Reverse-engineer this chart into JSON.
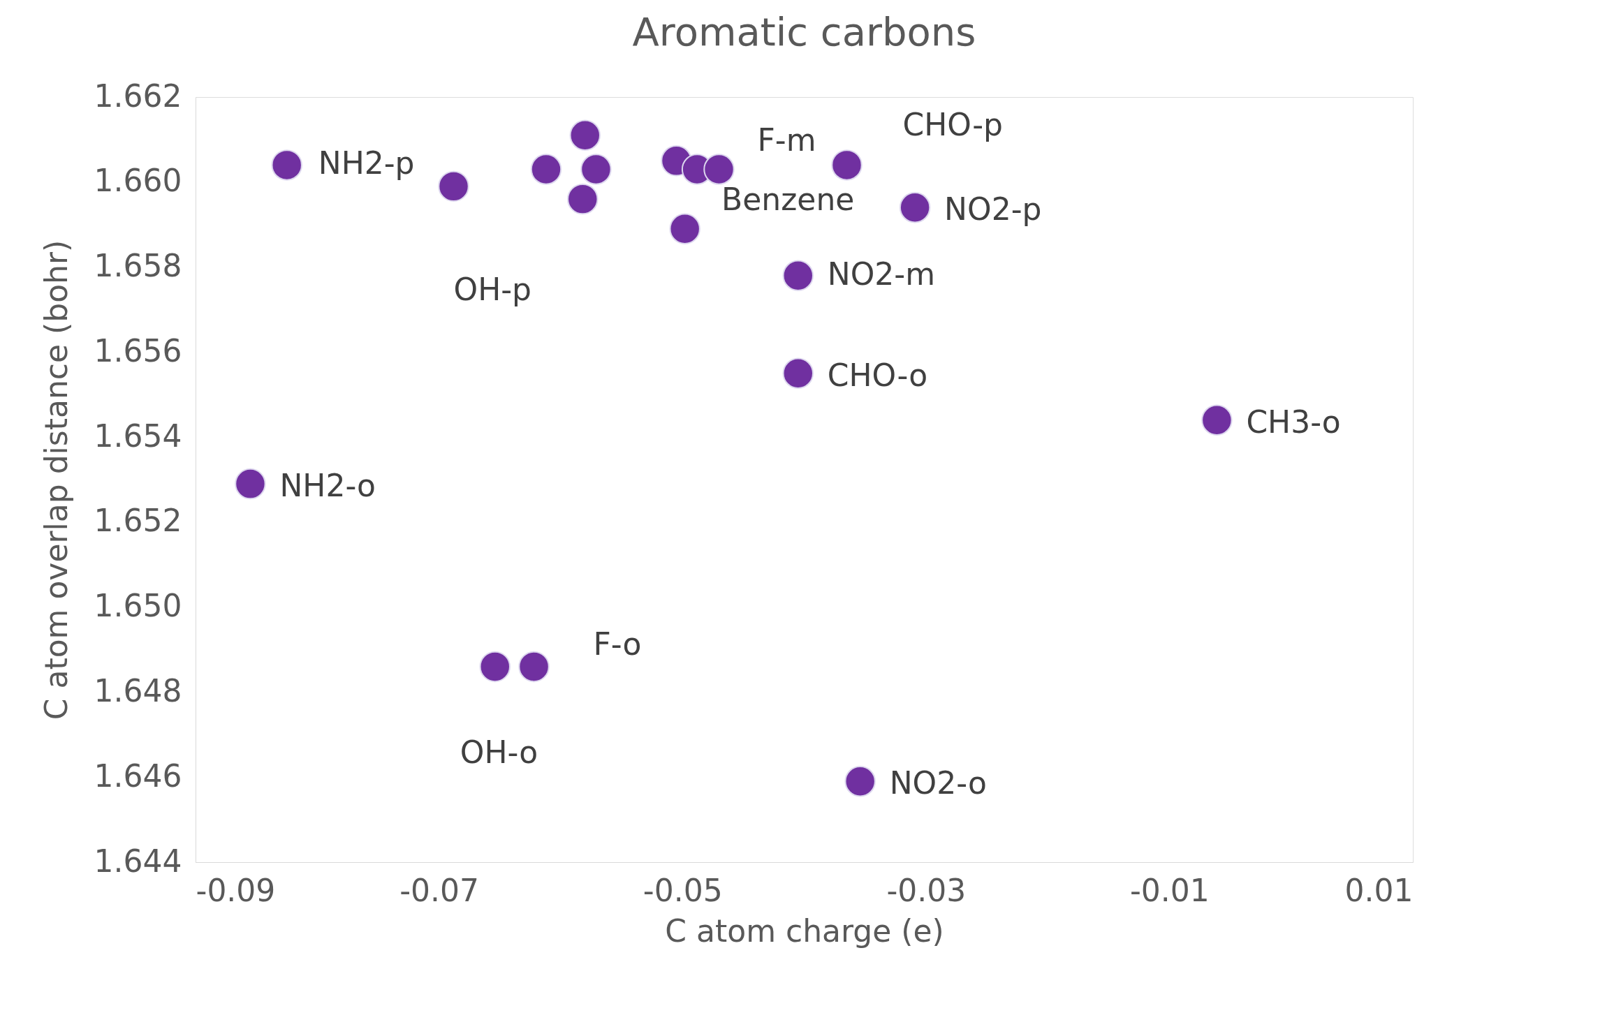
{
  "chart_data": {
    "type": "scatter",
    "title": "Aromatic carbons",
    "xlabel": "C atom charge (e)",
    "ylabel": "C atom overlap distance (bohr)",
    "x": [
      -0.0825,
      -0.0688,
      -0.0612,
      -0.058,
      -0.0571,
      -0.0582,
      -0.0505,
      -0.0488,
      -0.047,
      -0.0498,
      -0.0365,
      -0.0309,
      -0.0405,
      -0.0405,
      -0.0061,
      -0.0855,
      -0.0654,
      -0.0622,
      -0.0354
    ],
    "series": [
      {
        "color": "#7030a0",
        "values": [
          1.6604,
          1.6599,
          1.6603,
          1.6611,
          1.6603,
          1.6596,
          1.6605,
          1.6603,
          1.6603,
          1.6589,
          1.6604,
          1.6594,
          1.6578,
          1.6555,
          1.6544,
          1.6529,
          1.6486,
          1.6486,
          1.6459
        ]
      }
    ],
    "marker": "circle",
    "grid": false,
    "xlim": [
      -0.09,
      0.01
    ],
    "xticks": [
      -0.09,
      -0.07,
      -0.05,
      -0.03,
      -0.01,
      0.01
    ],
    "ylim": [
      1.644,
      1.662
    ],
    "yticks": [
      {
        "value": 1.644,
        "label": "1.644"
      },
      {
        "value": 1.646,
        "label": "1.646"
      },
      {
        "value": 1.648,
        "label": "1.648"
      },
      {
        "value": 1.65,
        "label": "1.650"
      },
      {
        "value": 1.652,
        "label": "1.652"
      },
      {
        "value": 1.654,
        "label": "1.654"
      },
      {
        "value": 1.656,
        "label": "1.656"
      },
      {
        "value": 1.658,
        "label": "1.658"
      },
      {
        "value": 1.66,
        "label": "1.660"
      },
      {
        "value": 1.662,
        "label": "1.662"
      }
    ],
    "annotations": [
      {
        "text": "NH2-p",
        "x": -0.0825,
        "y": 1.6604
      },
      {
        "text": "OH-p",
        "x": -0.0688,
        "y": 1.6599
      },
      {
        "text": "Benzene",
        "x": -0.0488,
        "y": 1.6603
      },
      {
        "text": "F-m",
        "x": -0.047,
        "y": 1.6603
      },
      {
        "text": "CHO-p",
        "x": -0.0365,
        "y": 1.6604
      },
      {
        "text": "NO2-p",
        "x": -0.0309,
        "y": 1.6594
      },
      {
        "text": "NO2-m",
        "x": -0.0405,
        "y": 1.6578
      },
      {
        "text": "CHO-o",
        "x": -0.0405,
        "y": 1.6555
      },
      {
        "text": "CH3-o",
        "x": -0.0061,
        "y": 1.6544
      },
      {
        "text": "NH2-o",
        "x": -0.0855,
        "y": 1.6529
      },
      {
        "text": "OH-o",
        "x": -0.0654,
        "y": 1.6486
      },
      {
        "text": "F-o",
        "x": -0.0622,
        "y": 1.6486
      },
      {
        "text": "NO2-o",
        "x": -0.0354,
        "y": 1.6459
      }
    ]
  }
}
